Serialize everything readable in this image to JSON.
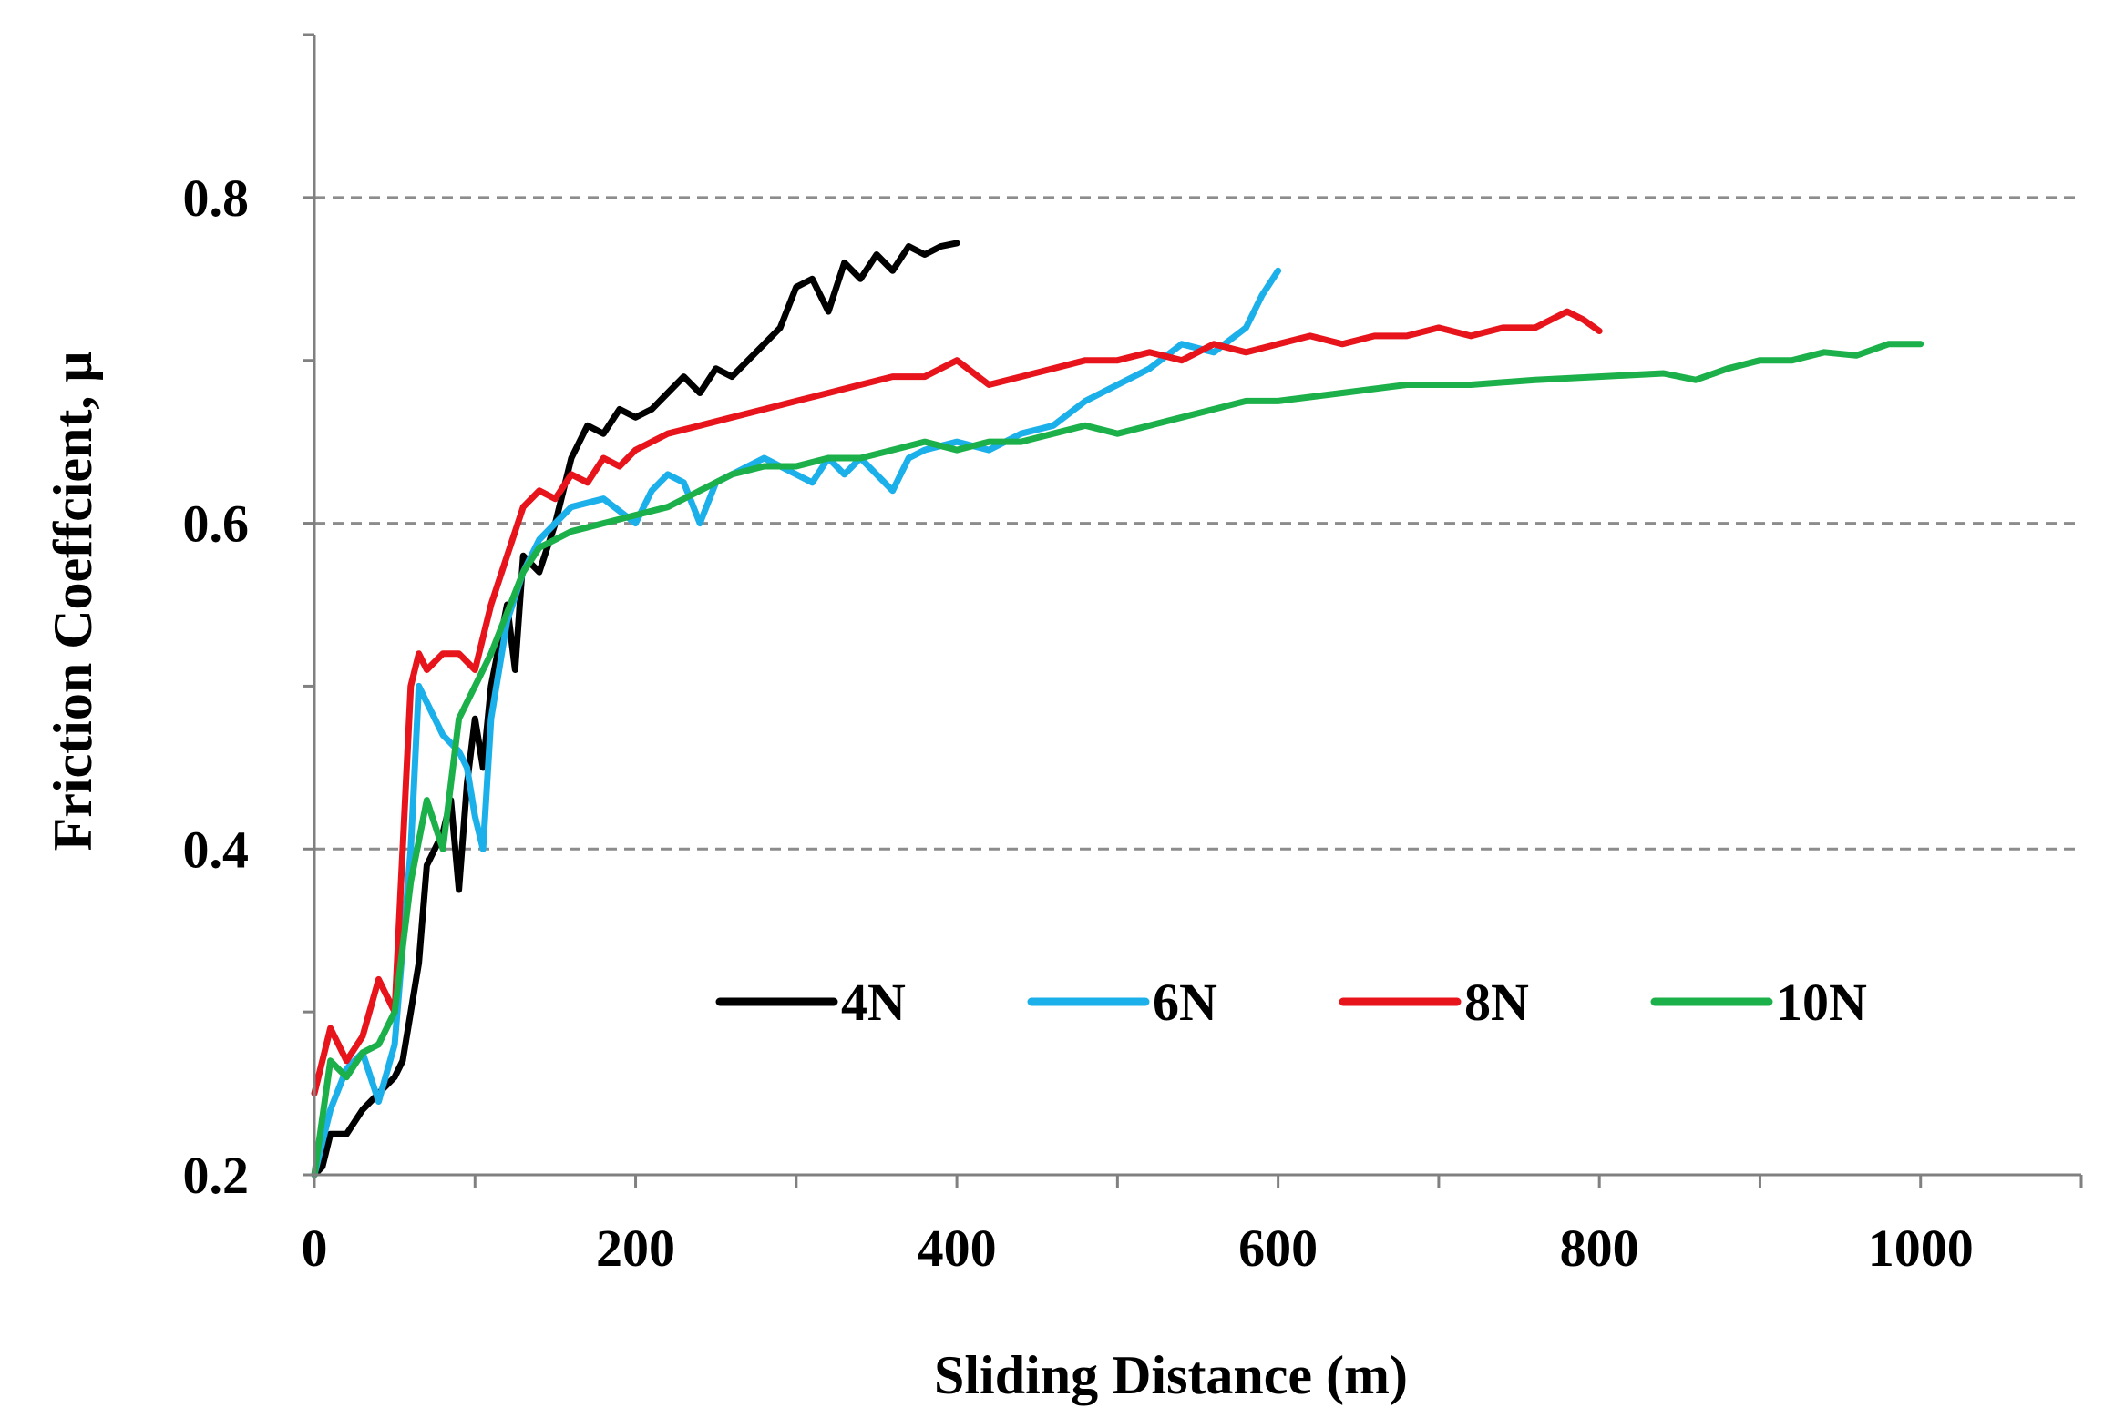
{
  "chart_data": {
    "type": "line",
    "xlabel": "Sliding Distance (m)",
    "ylabel": "Friction Coeffcient, μ",
    "xlim": [
      0,
      1100
    ],
    "ylim": [
      0.2,
      0.9
    ],
    "x_ticks": [
      0,
      200,
      400,
      600,
      800,
      1000
    ],
    "x_tick_labels": [
      "0",
      "200",
      "400",
      "600",
      "800",
      "1000"
    ],
    "x_minor_ticks": [
      100,
      300,
      500,
      700,
      900,
      1100
    ],
    "y_ticks": [
      0.2,
      0.4,
      0.6,
      0.8
    ],
    "y_tick_labels": [
      "0.2",
      "0.4",
      "0.6",
      "0.8"
    ],
    "y_minor_ticks": [
      0.3,
      0.5,
      0.7,
      0.9
    ],
    "gridlines_y": [
      0.4,
      0.6,
      0.8
    ],
    "legend_position": "lower-center",
    "series": [
      {
        "name": "4N",
        "color": "#000000",
        "x": [
          0,
          5,
          10,
          20,
          30,
          40,
          50,
          55,
          60,
          65,
          70,
          75,
          80,
          85,
          90,
          95,
          100,
          105,
          110,
          120,
          125,
          130,
          140,
          150,
          160,
          170,
          180,
          190,
          200,
          210,
          220,
          230,
          240,
          250,
          260,
          270,
          280,
          290,
          300,
          310,
          320,
          330,
          340,
          350,
          360,
          370,
          380,
          390,
          400
        ],
        "y": [
          0.2,
          0.205,
          0.225,
          0.225,
          0.24,
          0.25,
          0.26,
          0.27,
          0.3,
          0.33,
          0.39,
          0.4,
          0.41,
          0.43,
          0.375,
          0.44,
          0.48,
          0.45,
          0.5,
          0.55,
          0.51,
          0.58,
          0.57,
          0.6,
          0.64,
          0.66,
          0.655,
          0.67,
          0.665,
          0.67,
          0.68,
          0.69,
          0.68,
          0.695,
          0.69,
          0.7,
          0.71,
          0.72,
          0.745,
          0.75,
          0.73,
          0.76,
          0.75,
          0.765,
          0.755,
          0.77,
          0.765,
          0.77,
          0.772
        ]
      },
      {
        "name": "6N",
        "color": "#1cb0ea",
        "x": [
          0,
          10,
          20,
          30,
          40,
          50,
          60,
          65,
          70,
          80,
          90,
          95,
          100,
          105,
          110,
          120,
          130,
          140,
          160,
          180,
          200,
          210,
          220,
          230,
          240,
          250,
          260,
          280,
          300,
          310,
          320,
          330,
          340,
          350,
          360,
          370,
          380,
          400,
          420,
          440,
          460,
          480,
          500,
          520,
          540,
          560,
          580,
          590,
          600
        ],
        "y": [
          0.2,
          0.24,
          0.265,
          0.275,
          0.245,
          0.28,
          0.4,
          0.5,
          0.49,
          0.47,
          0.46,
          0.45,
          0.42,
          0.4,
          0.48,
          0.54,
          0.57,
          0.59,
          0.61,
          0.615,
          0.6,
          0.62,
          0.63,
          0.625,
          0.6,
          0.625,
          0.63,
          0.64,
          0.63,
          0.625,
          0.64,
          0.63,
          0.64,
          0.63,
          0.62,
          0.64,
          0.645,
          0.65,
          0.645,
          0.655,
          0.66,
          0.675,
          0.685,
          0.695,
          0.71,
          0.705,
          0.72,
          0.74,
          0.755
        ]
      },
      {
        "name": "8N",
        "color": "#e8141b",
        "x": [
          0,
          10,
          20,
          30,
          40,
          50,
          55,
          60,
          65,
          70,
          80,
          90,
          100,
          110,
          120,
          130,
          140,
          150,
          160,
          170,
          180,
          190,
          200,
          220,
          240,
          260,
          280,
          300,
          320,
          340,
          360,
          380,
          400,
          420,
          440,
          460,
          480,
          500,
          520,
          540,
          560,
          580,
          600,
          620,
          640,
          660,
          680,
          700,
          720,
          740,
          760,
          780,
          790,
          800
        ],
        "y": [
          0.25,
          0.29,
          0.27,
          0.285,
          0.32,
          0.3,
          0.4,
          0.5,
          0.52,
          0.51,
          0.52,
          0.52,
          0.51,
          0.55,
          0.58,
          0.61,
          0.62,
          0.615,
          0.63,
          0.625,
          0.64,
          0.635,
          0.645,
          0.655,
          0.66,
          0.665,
          0.67,
          0.675,
          0.68,
          0.685,
          0.69,
          0.69,
          0.7,
          0.685,
          0.69,
          0.695,
          0.7,
          0.7,
          0.705,
          0.7,
          0.71,
          0.705,
          0.71,
          0.715,
          0.71,
          0.715,
          0.715,
          0.72,
          0.715,
          0.72,
          0.72,
          0.73,
          0.725,
          0.718
        ]
      },
      {
        "name": "10N",
        "color": "#1cb04a",
        "x": [
          0,
          10,
          20,
          30,
          40,
          50,
          60,
          70,
          80,
          90,
          100,
          110,
          120,
          130,
          140,
          160,
          180,
          200,
          220,
          240,
          260,
          280,
          300,
          320,
          340,
          360,
          380,
          400,
          420,
          440,
          460,
          480,
          500,
          520,
          540,
          560,
          580,
          600,
          640,
          680,
          720,
          760,
          800,
          840,
          860,
          880,
          900,
          920,
          940,
          960,
          980,
          1000
        ],
        "y": [
          0.2,
          0.27,
          0.26,
          0.275,
          0.28,
          0.3,
          0.38,
          0.43,
          0.4,
          0.48,
          0.5,
          0.52,
          0.545,
          0.57,
          0.585,
          0.595,
          0.6,
          0.605,
          0.61,
          0.62,
          0.63,
          0.635,
          0.635,
          0.64,
          0.64,
          0.645,
          0.65,
          0.645,
          0.65,
          0.65,
          0.655,
          0.66,
          0.655,
          0.66,
          0.665,
          0.67,
          0.675,
          0.675,
          0.68,
          0.685,
          0.685,
          0.688,
          0.69,
          0.692,
          0.688,
          0.695,
          0.7,
          0.7,
          0.705,
          0.703,
          0.71,
          0.71
        ]
      }
    ]
  }
}
